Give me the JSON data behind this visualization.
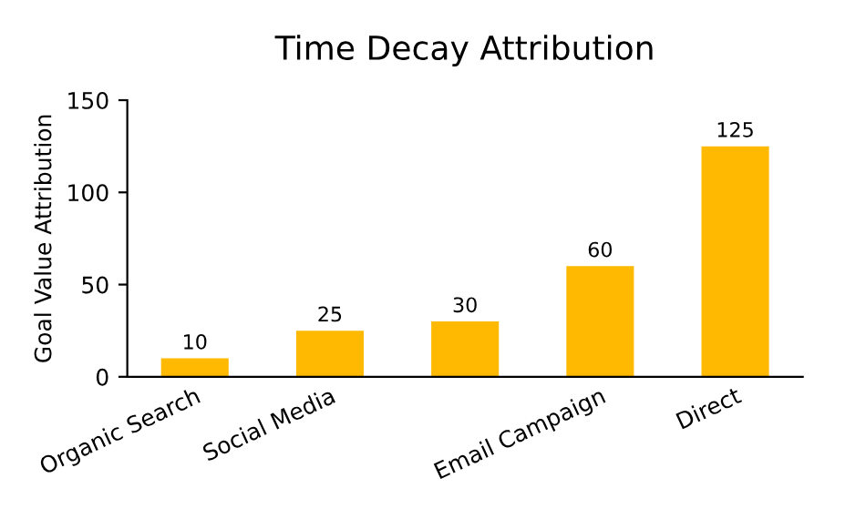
{
  "chart_data": {
    "type": "bar",
    "title": "Time Decay Attribution",
    "ylabel": "Goal Value Attribution",
    "categories": [
      "Organic Search",
      "Social Media",
      null,
      "Email Campaign",
      "Direct"
    ],
    "values": [
      10,
      25,
      30,
      60,
      125
    ],
    "color": "#ffb900",
    "ylim": [
      0,
      150
    ],
    "yticks": [
      0,
      50,
      100,
      150
    ],
    "grid": false,
    "data_labels": true
  }
}
